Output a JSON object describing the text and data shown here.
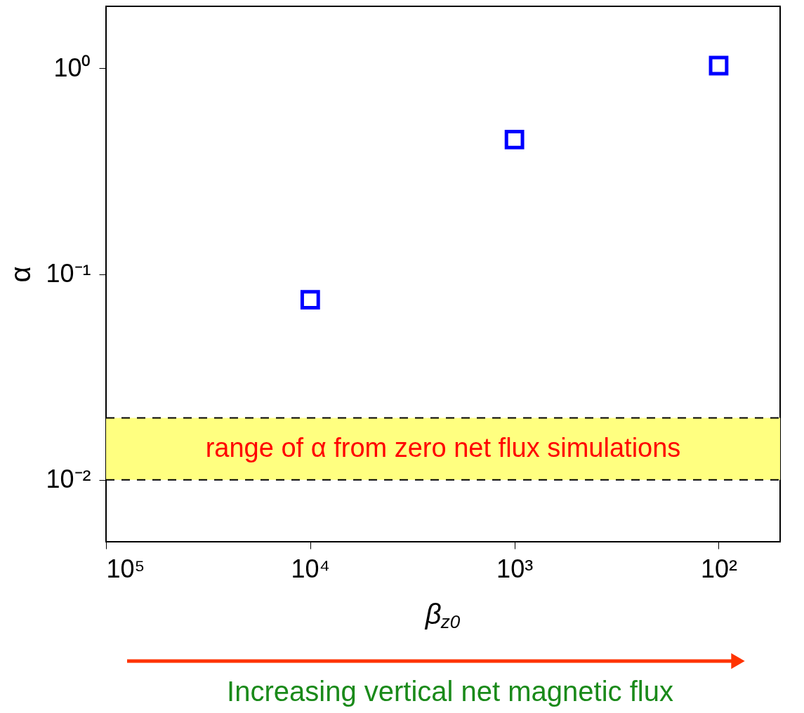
{
  "chart_data": {
    "type": "scatter",
    "xlabel": "β$_{z0}$",
    "ylabel": "α",
    "log": "xy",
    "marker": "square",
    "x": [
      10000,
      1000,
      100
    ],
    "series": [
      {
        "color": "#0000ff",
        "values": [
          0.075,
          0.45,
          1.03
        ]
      }
    ],
    "xlim": [
      100000,
      50
    ],
    "ylim": [
      0.005,
      2
    ],
    "xticks": [
      {
        "value": 100000,
        "label": "10⁵"
      },
      {
        "value": 10000,
        "label": "10⁴"
      },
      {
        "value": 1000,
        "label": "10³"
      },
      {
        "value": 100,
        "label": "10²"
      }
    ],
    "yticks": [
      {
        "value": 0.01,
        "label": "10⁻²"
      },
      {
        "value": 0.1,
        "label": "10⁻¹"
      },
      {
        "value": 1,
        "label": "10⁰"
      }
    ],
    "bands": [
      {
        "axis": "y",
        "from": 0.01,
        "to": 0.02,
        "label": "range of α from zero net flux simulations",
        "color": "#ffff80"
      }
    ],
    "ref_lines": [
      {
        "axis": "y",
        "value": 0.01,
        "line_style": "dashed",
        "color": "#000000"
      },
      {
        "axis": "y",
        "value": 0.02,
        "line_style": "dashed",
        "color": "#000000"
      }
    ],
    "annotations": [
      "Increasing vertical net magnetic flux"
    ],
    "grid": false
  }
}
